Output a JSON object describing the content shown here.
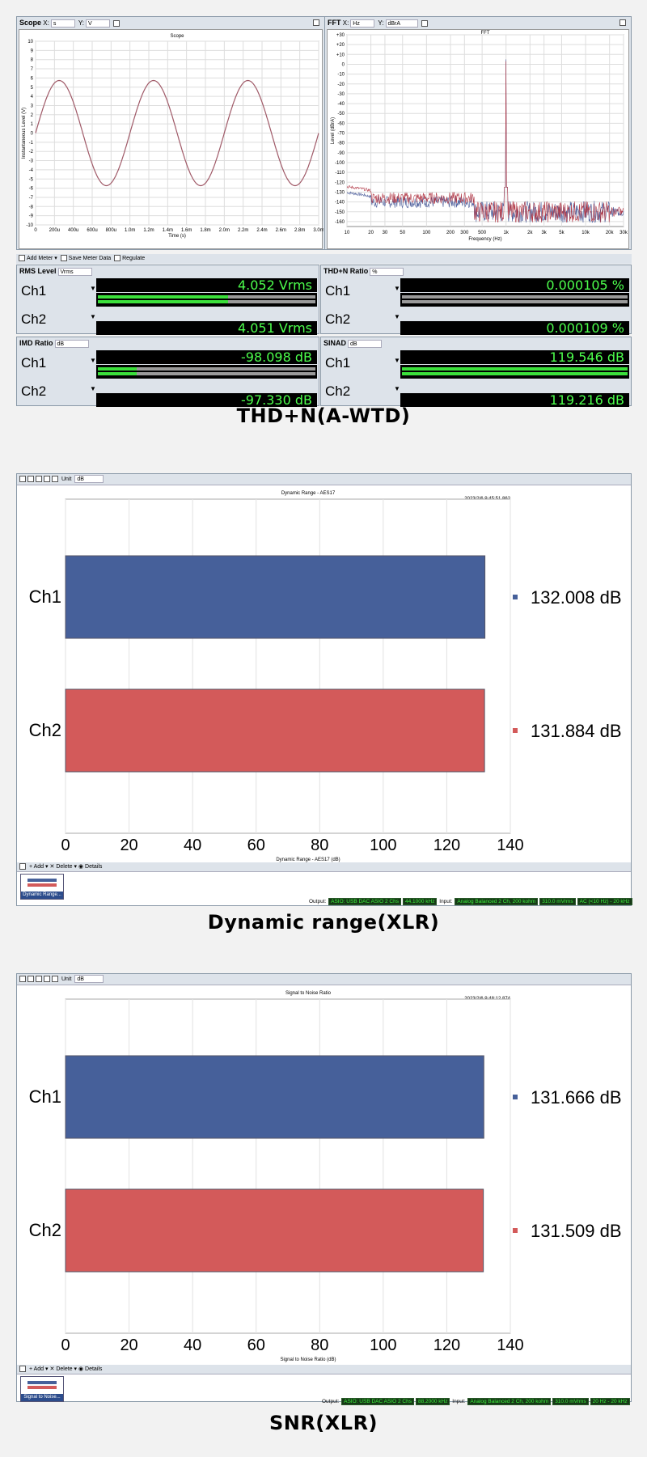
{
  "section1": {
    "caption": "THD+N(A-WTD)",
    "scope": {
      "panel_label": "Scope",
      "x_label": "X:",
      "x_unit": "s",
      "y_label": "Y:",
      "y_unit": "V",
      "title": "Scope",
      "ylabel": "Instantaneous Level (V)",
      "xlabel": "Time (s)",
      "y_ticks": [
        "10",
        "9",
        "8",
        "7",
        "6",
        "5",
        "4",
        "3",
        "2",
        "1",
        "0",
        "-1",
        "-2",
        "-3",
        "-4",
        "-5",
        "-6",
        "-7",
        "-8",
        "-9",
        "-10"
      ],
      "x_ticks": [
        "0",
        "200u",
        "400u",
        "600u",
        "800u",
        "1.0m",
        "1.2m",
        "1.4m",
        "1.6m",
        "1.8m",
        "2.0m",
        "2.2m",
        "2.4m",
        "2.6m",
        "2.8m",
        "3.0m"
      ]
    },
    "fft": {
      "panel_label": "FFT",
      "x_label": "X:",
      "x_unit": "Hz",
      "y_label": "Y:",
      "y_unit": "dBrA",
      "title": "FFT",
      "ylabel": "Level (dBrA)",
      "xlabel": "Frequency (Hz)",
      "y_ticks": [
        "+30",
        "+20",
        "+10",
        "0",
        "-10",
        "-20",
        "-30",
        "-40",
        "-50",
        "-60",
        "-70",
        "-80",
        "-90",
        "-100",
        "-110",
        "-120",
        "-130",
        "-140",
        "-150",
        "-160"
      ],
      "x_ticks": [
        "10",
        "20",
        "30",
        "50",
        "100",
        "200",
        "300",
        "500",
        "1k",
        "2k",
        "3k",
        "5k",
        "10k",
        "20k",
        "30k"
      ]
    },
    "toolbar": {
      "add_meter": "Add Meter",
      "save_meter_data": "Save Meter Data",
      "regulate": "Regulate"
    },
    "meters": [
      {
        "name": "RMS Level",
        "unit_sel": "Vrms",
        "rows": [
          {
            "ch": "Ch1",
            "value": "4.052",
            "unit": "Vrms",
            "fill": 0.6
          },
          {
            "ch": "Ch2",
            "value": "4.051",
            "unit": "Vrms",
            "fill": 0.6
          }
        ]
      },
      {
        "name": "THD+N Ratio",
        "unit_sel": "%",
        "rows": [
          {
            "ch": "Ch1",
            "value": "0.000105",
            "unit": "%",
            "fill": 0
          },
          {
            "ch": "Ch2",
            "value": "0.000109",
            "unit": "%",
            "fill": 0
          }
        ]
      },
      {
        "name": "IMD Ratio",
        "unit_sel": "dB",
        "rows": [
          {
            "ch": "Ch1",
            "value": "-98.098",
            "unit": "dB",
            "fill": 0.18
          },
          {
            "ch": "Ch2",
            "value": "-97.330",
            "unit": "dB",
            "fill": 0.18
          }
        ]
      },
      {
        "name": "SINAD",
        "unit_sel": "dB",
        "rows": [
          {
            "ch": "Ch1",
            "value": "119.546",
            "unit": "dB",
            "fill": 1
          },
          {
            "ch": "Ch2",
            "value": "119.216",
            "unit": "dB",
            "fill": 1
          }
        ]
      }
    ]
  },
  "section2": {
    "caption": "Dynamic range(XLR)",
    "unit_label": "Unit",
    "unit_value": "dB",
    "timestamp": "2023/2/6 9:45:51.862",
    "bottom_toolbar": {
      "add": "Add",
      "delete": "Delete",
      "details": "Details"
    },
    "thumb_label": "Dynamic Range...",
    "status": {
      "output_label": "Output:",
      "output_device": "ASIO: USB DAC ASIO 2 Chs",
      "output_rate": "44.1000 kHz",
      "input_label": "Input:",
      "input_device": "Analog Balanced 2 Ch, 200 kohm",
      "input_range": "310.0 mVrms",
      "input_filter": "AC (<10 Hz) - 20 kHz"
    }
  },
  "section3": {
    "caption": "SNR(XLR)",
    "unit_label": "Unit",
    "unit_value": "dB",
    "timestamp": "2023/2/6 9:48:12.874",
    "bottom_toolbar": {
      "add": "Add",
      "delete": "Delete",
      "details": "Details"
    },
    "thumb_label": "Signal to Noise...",
    "status": {
      "output_label": "Output:",
      "output_device": "ASIO: USB DAC ASIO 2 Chs",
      "output_rate": "88.2000 kHz",
      "input_label": "Input:",
      "input_device": "Analog Balanced 2 Ch, 200 kohm",
      "input_range": "310.0 mVrms",
      "input_filter": "20 Hz - 20 kHz"
    }
  },
  "chart_data": [
    {
      "type": "line",
      "title": "Scope",
      "xlabel": "Time (s)",
      "ylabel": "Instantaneous Level (V)",
      "xlim": [
        0,
        0.003
      ],
      "ylim": [
        -10,
        10
      ],
      "series": [
        {
          "amplitude_v": 5.73,
          "frequency_hz": 1000,
          "color": "#a05a68"
        }
      ]
    },
    {
      "type": "line",
      "title": "FFT",
      "xlabel": "Frequency (Hz)",
      "ylabel": "Level (dBrA)",
      "x_scale": "log",
      "xlim": [
        10,
        30000
      ],
      "ylim": [
        -165,
        30
      ],
      "peak": {
        "x": 1000,
        "y": 5
      },
      "noise_floor_db": -150
    },
    {
      "type": "bar",
      "title": "Dynamic Range - AES17",
      "xlabel": "Dynamic Range - AES17 (dB)",
      "categories": [
        "Ch1",
        "Ch2"
      ],
      "values": [
        132.008,
        131.884
      ],
      "value_labels": [
        "132.008 dB",
        "131.884 dB"
      ],
      "colors": [
        "#46609a",
        "#d35a5a"
      ],
      "xlim": [
        0,
        140
      ],
      "x_ticks": [
        "0",
        "20",
        "40",
        "60",
        "80",
        "100",
        "120",
        "140"
      ]
    },
    {
      "type": "bar",
      "title": "Signal to Noise Ratio",
      "xlabel": "Signal to Noise Ratio (dB)",
      "categories": [
        "Ch1",
        "Ch2"
      ],
      "values": [
        131.666,
        131.509
      ],
      "value_labels": [
        "131.666 dB",
        "131.509 dB"
      ],
      "colors": [
        "#46609a",
        "#d35a5a"
      ],
      "xlim": [
        0,
        140
      ],
      "x_ticks": [
        "0",
        "20",
        "40",
        "60",
        "80",
        "100",
        "120",
        "140"
      ]
    }
  ]
}
